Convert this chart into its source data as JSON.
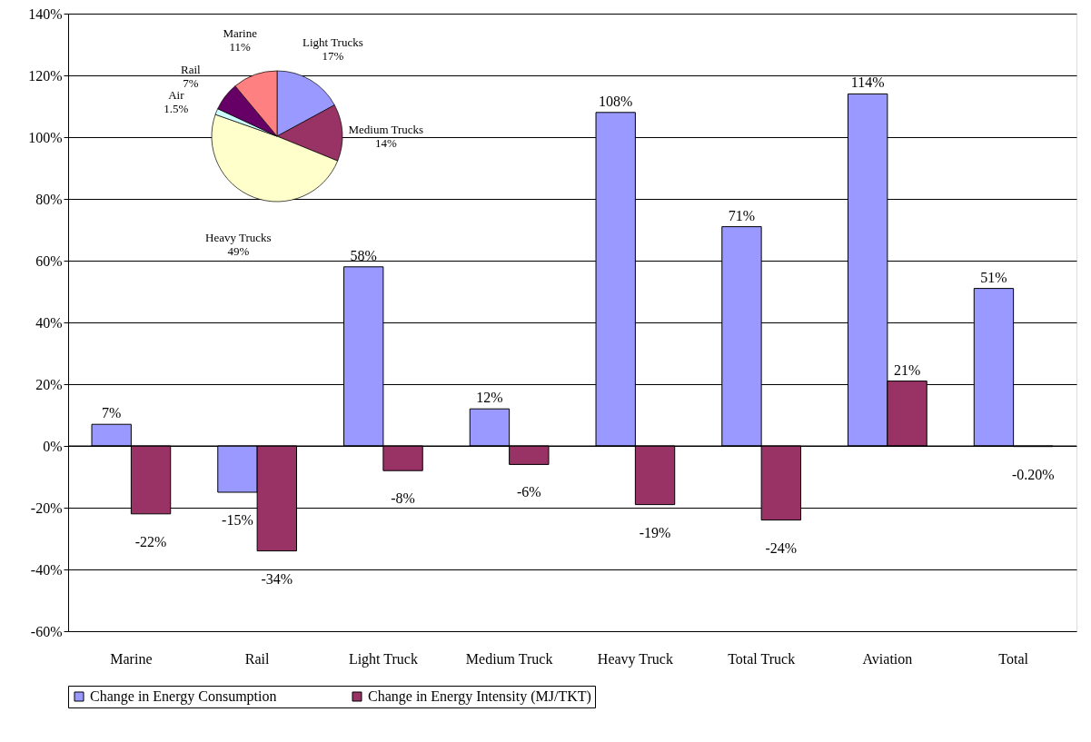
{
  "chart_data": [
    {
      "type": "bar",
      "categories": [
        "Marine",
        "Rail",
        "Light Truck",
        "Medium Truck",
        "Heavy Truck",
        "Total Truck",
        "Aviation",
        "Total"
      ],
      "series": [
        {
          "name": "Change in Energy Consumption",
          "color": "#9999ff",
          "values": [
            7,
            -15,
            58,
            12,
            108,
            71,
            114,
            51
          ],
          "value_labels": [
            "7%",
            "-15%",
            "58%",
            "12%",
            "108%",
            "71%",
            "114%",
            "51%"
          ]
        },
        {
          "name": "Change in Energy Intensity (MJ/TKT)",
          "color": "#993366",
          "values": [
            -22,
            -34,
            -8,
            -6,
            -19,
            -24,
            21,
            -0.2
          ],
          "value_labels": [
            "-22%",
            "-34%",
            "-8%",
            "-6%",
            "-19%",
            "-24%",
            "21%",
            "-0.20%"
          ]
        }
      ],
      "ylim": [
        -60,
        140
      ],
      "yticks": [
        {
          "value": -60,
          "label": "-60%"
        },
        {
          "value": -40,
          "label": "-40%"
        },
        {
          "value": -20,
          "label": "-20%"
        },
        {
          "value": 0,
          "label": "0%"
        },
        {
          "value": 20,
          "label": "20%"
        },
        {
          "value": 40,
          "label": "40%"
        },
        {
          "value": 60,
          "label": "60%"
        },
        {
          "value": 80,
          "label": "80%"
        },
        {
          "value": 100,
          "label": "100%"
        },
        {
          "value": 120,
          "label": "120%"
        },
        {
          "value": 140,
          "label": "140%"
        }
      ],
      "grid": "y",
      "legend": "bottom"
    },
    {
      "type": "pie",
      "categories": [
        "Light Trucks",
        "Medium Trucks",
        "Heavy Trucks",
        "Air",
        "Rail",
        "Marine"
      ],
      "values": [
        17,
        14,
        49,
        1.5,
        7,
        11
      ],
      "value_labels": [
        "17%",
        "14%",
        "49%",
        "1.5%",
        "7%",
        "11%"
      ],
      "colors": [
        "#9999ff",
        "#993366",
        "#ffffcc",
        "#ccffff",
        "#660066",
        "#ff8080"
      ]
    }
  ]
}
